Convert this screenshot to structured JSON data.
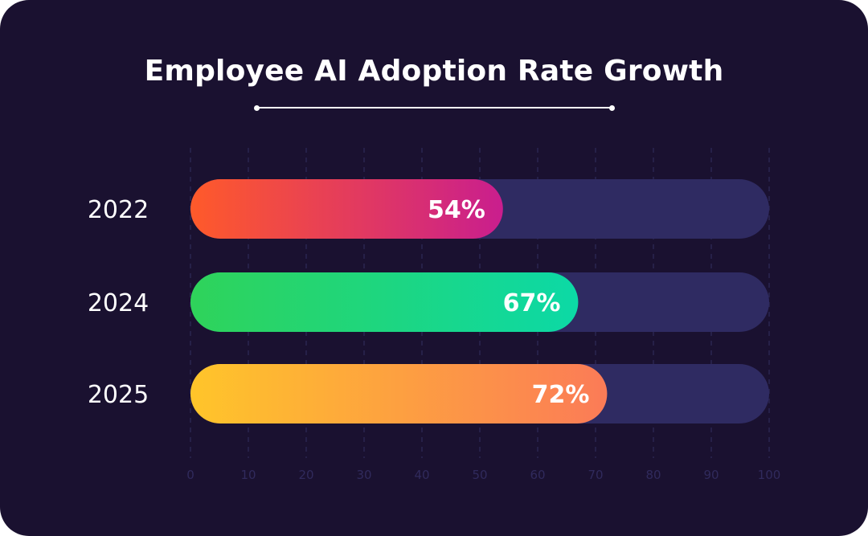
{
  "chart_data": {
    "type": "bar",
    "orientation": "horizontal",
    "title": "Employee AI Adoption Rate Growth",
    "categories": [
      "2022",
      "2024",
      "2025"
    ],
    "values": [
      54,
      67,
      72
    ],
    "value_labels": [
      "54%",
      "67%",
      "72%"
    ],
    "xlim": [
      0,
      100
    ],
    "xticks": [
      0,
      10,
      20,
      30,
      40,
      50,
      60,
      70,
      80,
      90,
      100
    ],
    "xlabel": "",
    "ylabel": "",
    "grid": true,
    "colors": {
      "background": "#1a1130",
      "track": "#2f2b62",
      "grid": "#2b2550",
      "tick_label": "#302a5c",
      "bar_gradients": [
        [
          "#ff5a2a",
          "#c91e8e"
        ],
        [
          "#2fd35a",
          "#0cd9a6"
        ],
        [
          "#ffc52a",
          "#fb7b57"
        ]
      ]
    }
  }
}
